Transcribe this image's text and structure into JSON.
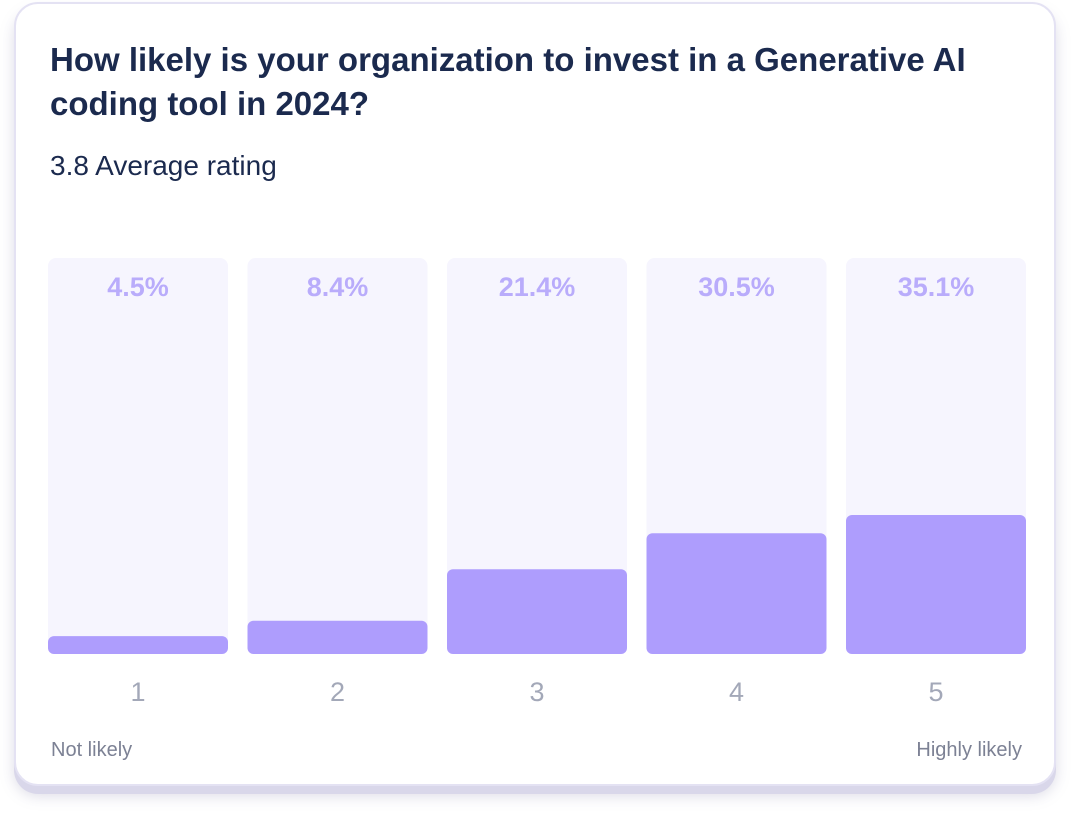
{
  "chart_data": {
    "type": "bar",
    "title": "How likely is your organization to invest in a Generative AI coding tool in 2024?",
    "subtitle": "3.8 Average rating",
    "categories": [
      "1",
      "2",
      "3",
      "4",
      "5"
    ],
    "values": [
      4.5,
      8.4,
      21.4,
      30.5,
      35.1
    ],
    "value_labels": [
      "4.5%",
      "8.4%",
      "21.4%",
      "30.5%",
      "35.1%"
    ],
    "ylim": [
      0,
      100
    ],
    "scale_low_label": "Not likely",
    "scale_high_label": "Highly likely",
    "grid": false,
    "colors": {
      "track": "#f6f5fe",
      "fill": "#ae9dfd",
      "value_label": "#b9acfb",
      "tick_label": "#a3a8b8",
      "title": "#1b2a4e"
    }
  }
}
